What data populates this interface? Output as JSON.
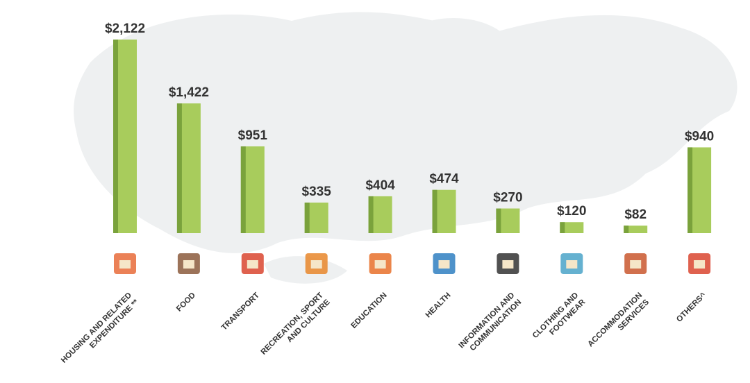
{
  "chart_data": {
    "type": "bar",
    "categories": [
      [
        "HOUSING AND RELATED",
        "EXPENDITURE **"
      ],
      [
        "FOOD"
      ],
      [
        "TRANSPORT"
      ],
      [
        "RECREATION, SPORT",
        "AND CULTURE"
      ],
      [
        "EDUCATION"
      ],
      [
        "HEALTH"
      ],
      [
        "INFORMATION AND",
        "COMMUNICATION"
      ],
      [
        "CLOTHING AND",
        "FOOTWEAR"
      ],
      [
        "ACCOMMODATION",
        "SERVICES"
      ],
      [
        "OTHERS^"
      ]
    ],
    "values": [
      2122,
      1422,
      951,
      335,
      404,
      474,
      270,
      120,
      82,
      940
    ],
    "value_labels": [
      "$2,122",
      "$1,422",
      "$951",
      "$335",
      "$404",
      "$474",
      "$270",
      "$120",
      "$82",
      "$940"
    ],
    "color": "#a8cc5c",
    "shade_color": "#7aa23c"
  }
}
